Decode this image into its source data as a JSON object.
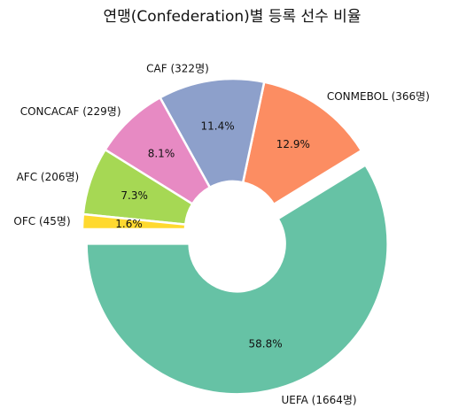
{
  "chart_data": {
    "type": "pie",
    "title": "연맹(Confederation)별 등록 선수 비율",
    "donut": true,
    "slices": [
      {
        "label": "UEFA (1664명)",
        "value": 1664,
        "pct_label": "58.8%",
        "color": "#66c2a5",
        "exploded": true
      },
      {
        "label": "CONMEBOL (366명)",
        "value": 366,
        "pct_label": "12.9%",
        "color": "#fc8d62",
        "exploded": false
      },
      {
        "label": "CAF (322명)",
        "value": 322,
        "pct_label": "11.4%",
        "color": "#8da0cb",
        "exploded": false
      },
      {
        "label": "CONCACAF (229명)",
        "value": 229,
        "pct_label": "8.1%",
        "color": "#e78ac3",
        "exploded": false
      },
      {
        "label": "AFC (206명)",
        "value": 206,
        "pct_label": "7.3%",
        "color": "#a6d854",
        "exploded": false
      },
      {
        "label": "OFC (45명)",
        "value": 45,
        "pct_label": "1.6%",
        "color": "#ffd92f",
        "exploded": false
      }
    ],
    "start_angle_deg": 180,
    "direction": "counterclockwise"
  }
}
